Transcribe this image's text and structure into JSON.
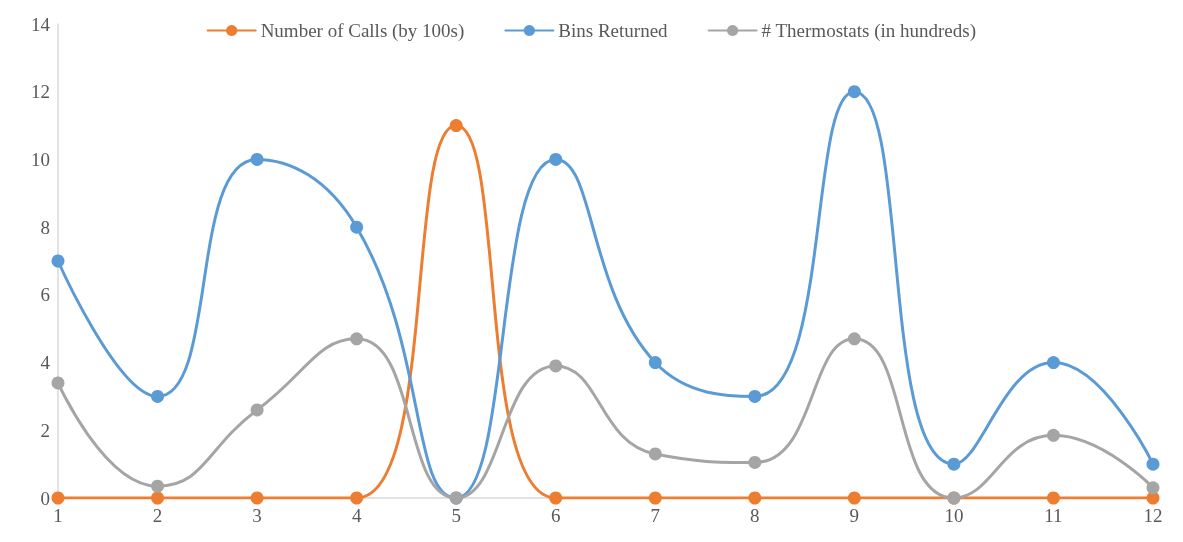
{
  "chart_data": {
    "type": "line",
    "categories": [
      "1",
      "2",
      "3",
      "4",
      "5",
      "6",
      "7",
      "8",
      "9",
      "10",
      "11",
      "12"
    ],
    "series": [
      {
        "name": "Number of Calls (by 100s)",
        "color": "#ed7d31",
        "values": [
          0,
          0,
          0,
          0,
          11,
          0,
          0,
          0,
          0,
          0,
          0,
          0
        ]
      },
      {
        "name": "Bins Returned",
        "color": "#5b9bd5",
        "values": [
          7,
          3,
          10,
          8,
          0,
          10,
          4,
          3,
          12,
          1,
          4,
          1
        ]
      },
      {
        "name": "# Thermostats (in hundreds)",
        "color": "#a5a5a5",
        "values": [
          3.4,
          0.35,
          2.6,
          4.7,
          0,
          3.9,
          1.3,
          1.05,
          4.7,
          0,
          1.85,
          0.3
        ]
      }
    ],
    "ylim": [
      0,
      14
    ],
    "yticks": [
      0,
      2,
      4,
      6,
      8,
      10,
      12,
      14
    ],
    "grid": false,
    "legend": "top",
    "marker": "circle",
    "line_style": "solid"
  }
}
